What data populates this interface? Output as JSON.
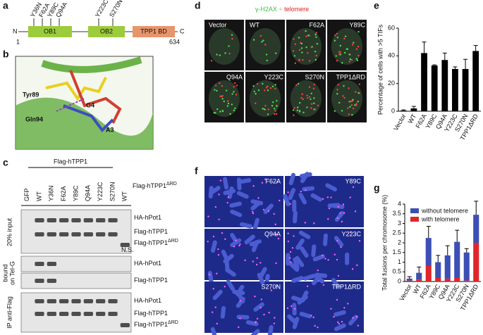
{
  "panels": {
    "letters": [
      "a",
      "b",
      "c",
      "d",
      "e",
      "f",
      "g"
    ],
    "a": {
      "terminal_n": "N",
      "terminal_c": "C",
      "start": "1",
      "end": "634",
      "domains": [
        "OB1",
        "OB2",
        "TPP1 BD"
      ],
      "mutations": [
        "Y36N",
        "F62A",
        "Y89C",
        "Q94A",
        "Y223C",
        "S270N"
      ]
    },
    "b": {
      "labels": [
        "Tyr89",
        "G4",
        "Gln94",
        "A3"
      ]
    },
    "c": {
      "group": "Flag-hTPP1",
      "group2": {
        "text": "Flag-hTPP1",
        "sup": "ΔRD"
      },
      "lanes": [
        "GFP",
        "WT",
        "Y36N",
        "F62A",
        "Y89C",
        "Q94A",
        "Y223C",
        "S270N",
        "WT"
      ],
      "side": [
        "20% input",
        "bound",
        "on Tel-G",
        "IP anti-Flag"
      ],
      "bands": [
        {
          "text": "HA-hPot1"
        },
        {
          "text": "Flag-hTPP1"
        },
        {
          "text": "Flag-hTPP1",
          "sup": "ΔRD"
        },
        {
          "text": "N.S."
        },
        {
          "text": "HA-hPot1"
        },
        {
          "text": "Flag-hTPP1"
        },
        {
          "text": "HA-hPot1"
        },
        {
          "text": "Flag-hTPP1"
        },
        {
          "text": "Flag-hTPP1",
          "sup": "ΔRD"
        }
      ]
    },
    "d": {
      "title_a": "γ-H2AX",
      "title_b": "+",
      "title_c": "telomere",
      "images": [
        "Vector",
        "WT",
        "F62A",
        "Y89C",
        "Q94A",
        "Y223C",
        "S270N",
        "TPP1ΔRD"
      ]
    },
    "f": {
      "images": [
        "F62A",
        "Y89C",
        "Q94A",
        "Y223C",
        "S270N",
        "TPP1ΔRD"
      ]
    }
  },
  "chart_data": [
    {
      "type": "bar",
      "ylabel": "Percentage of cells with >5 TIFs",
      "categories": [
        "Vector",
        "WT",
        "F62A",
        "Y89C",
        "Q94A",
        "Y223C",
        "S270N",
        "TPP1ΔRD"
      ],
      "values": [
        0.5,
        2,
        42,
        33,
        37,
        30.5,
        30.5,
        43.5
      ],
      "errors": [
        0.5,
        1.5,
        8,
        0.5,
        5,
        1.5,
        7,
        4
      ],
      "color": "#000000",
      "ylim": [
        0,
        60
      ],
      "yticks": [
        0,
        20,
        40,
        60
      ]
    },
    {
      "type": "stacked_bar",
      "ylabel": "Total fusions per chromosome (%)",
      "categories": [
        "Vector",
        "WT",
        "F62A",
        "Y89C",
        "Q94A",
        "Y223C",
        "S270N",
        "TPP1ΔRD"
      ],
      "series": [
        {
          "name": "without telomere",
          "color": "#3c4fb4",
          "values": [
            0.1,
            0.35,
            1.45,
            0.8,
            1.2,
            1.85,
            1.45,
            1.45
          ],
          "errors": [
            0.1,
            0.3,
            0.6,
            0.35,
            0.5,
            0.6,
            0.2,
            0.7
          ]
        },
        {
          "name": "with telomere",
          "color": "#e0262a",
          "values": [
            0.05,
            0.1,
            0.8,
            0.2,
            0.15,
            0.2,
            0.05,
            2.0
          ]
        }
      ],
      "ylim": [
        0,
        4
      ],
      "yticks": [
        0,
        0.5,
        1,
        1.5,
        2,
        2.5,
        3,
        3.5,
        4
      ]
    }
  ]
}
